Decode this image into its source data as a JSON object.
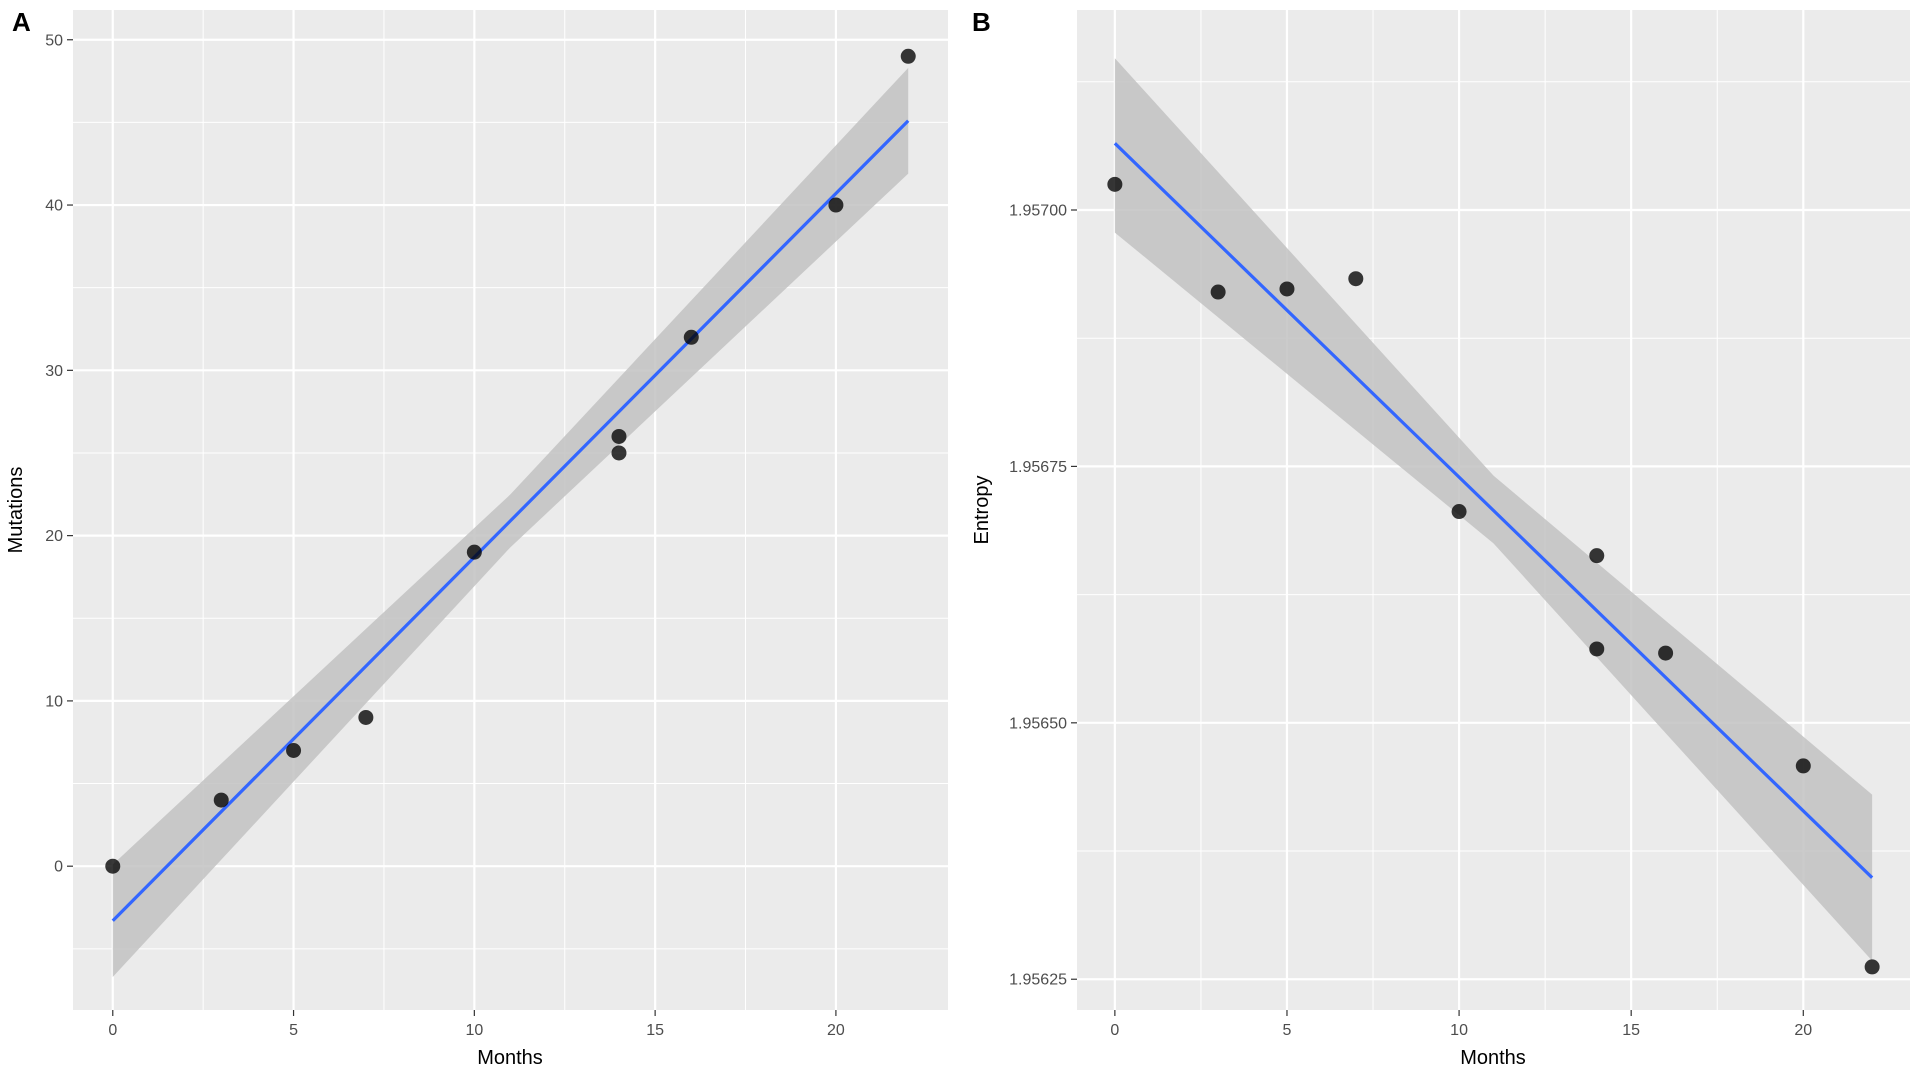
{
  "figure": {
    "background": "#ffffff",
    "panel_background": "#ebebeb",
    "grid_color": "#ffffff"
  },
  "chart_data": [
    {
      "panel": "A",
      "type": "scatter",
      "xlabel": "Months",
      "ylabel": "Mutations",
      "xlim": [
        -1.1,
        23.1
      ],
      "ylim": [
        -8.7,
        51.8
      ],
      "xticks": [
        0,
        5,
        10,
        15,
        20
      ],
      "xtick_labels": [
        "0",
        "5",
        "10",
        "15",
        "20"
      ],
      "yticks": [
        0,
        10,
        20,
        30,
        40,
        50
      ],
      "ytick_labels": [
        "0",
        "10",
        "20",
        "30",
        "40",
        "50"
      ],
      "points": [
        {
          "x": 0,
          "y": 0
        },
        {
          "x": 3,
          "y": 4
        },
        {
          "x": 5,
          "y": 7
        },
        {
          "x": 7,
          "y": 9
        },
        {
          "x": 10,
          "y": 19
        },
        {
          "x": 14,
          "y": 26
        },
        {
          "x": 14,
          "y": 25
        },
        {
          "x": 16,
          "y": 32
        },
        {
          "x": 20,
          "y": 40
        },
        {
          "x": 22,
          "y": 49
        }
      ],
      "fit": {
        "method": "lm",
        "x0": 0,
        "y0": -3.3,
        "x1": 22,
        "y1": 45.1
      },
      "ribbon": [
        {
          "x": 0,
          "lower": -6.7,
          "upper": 0.1
        },
        {
          "x": 11,
          "lower": 19.3,
          "upper": 22.5
        },
        {
          "x": 22,
          "lower": 41.9,
          "upper": 48.3
        }
      ],
      "colors": {
        "points": "#000000",
        "line": "#3366ff",
        "ribbon": "#c2c2c2"
      }
    },
    {
      "panel": "B",
      "type": "scatter",
      "xlabel": "Months",
      "ylabel": "Entropy",
      "xlim": [
        -1.1,
        23.1
      ],
      "ylim": [
        1.95622,
        1.957195
      ],
      "xticks": [
        0,
        5,
        10,
        15,
        20
      ],
      "xtick_labels": [
        "0",
        "5",
        "10",
        "15",
        "20"
      ],
      "yticks": [
        1.95625,
        1.9565,
        1.95675,
        1.957
      ],
      "ytick_labels": [
        "1.95625",
        "1.95650",
        "1.95675",
        "1.95700"
      ],
      "points": [
        {
          "x": 0,
          "y": 1.957025
        },
        {
          "x": 3,
          "y": 1.95692
        },
        {
          "x": 5,
          "y": 1.956923
        },
        {
          "x": 7,
          "y": 1.956933
        },
        {
          "x": 10,
          "y": 1.956706
        },
        {
          "x": 14,
          "y": 1.956663
        },
        {
          "x": 14,
          "y": 1.956572
        },
        {
          "x": 16,
          "y": 1.956568
        },
        {
          "x": 20,
          "y": 1.956458
        },
        {
          "x": 22,
          "y": 1.956262
        }
      ],
      "fit": {
        "method": "lm",
        "x0": 0,
        "y0": 1.957065,
        "x1": 22,
        "y1": 1.956349
      },
      "ribbon": [
        {
          "x": 0,
          "lower": 1.956978,
          "upper": 1.957148
        },
        {
          "x": 11,
          "lower": 1.956675,
          "upper": 1.956741
        },
        {
          "x": 22,
          "lower": 1.956268,
          "upper": 1.95643
        }
      ],
      "colors": {
        "points": "#000000",
        "line": "#3366ff",
        "ribbon": "#c2c2c2"
      }
    }
  ]
}
